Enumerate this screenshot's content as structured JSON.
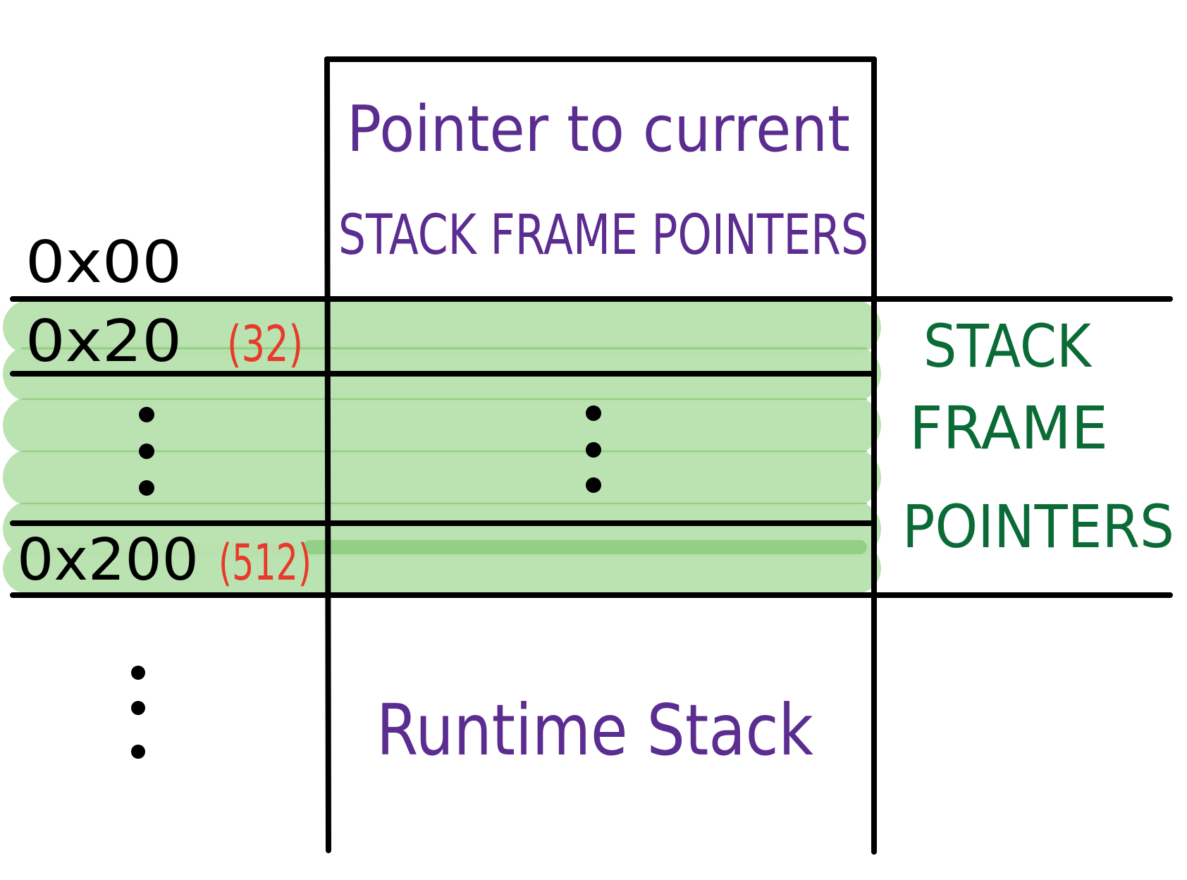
{
  "addresses": {
    "top": "0x00",
    "frame_start": "0x20",
    "frame_start_decimal": "(32)",
    "frame_end": "0x200",
    "frame_end_decimal": "(512)"
  },
  "column_header": {
    "line1": "Pointer to current",
    "line2": "STACK FRAME POINTERS"
  },
  "region_label": {
    "line1": "STACK",
    "line2": "FRAME",
    "line3": "POINTERS"
  },
  "bottom_label": "Runtime Stack",
  "colors": {
    "ink": "#000000",
    "purple": "#5b2d91",
    "green": "#0b6b36",
    "red": "#e8392a",
    "highlight": "#b7e0ad",
    "highlight_stroke": "#93cf85"
  }
}
